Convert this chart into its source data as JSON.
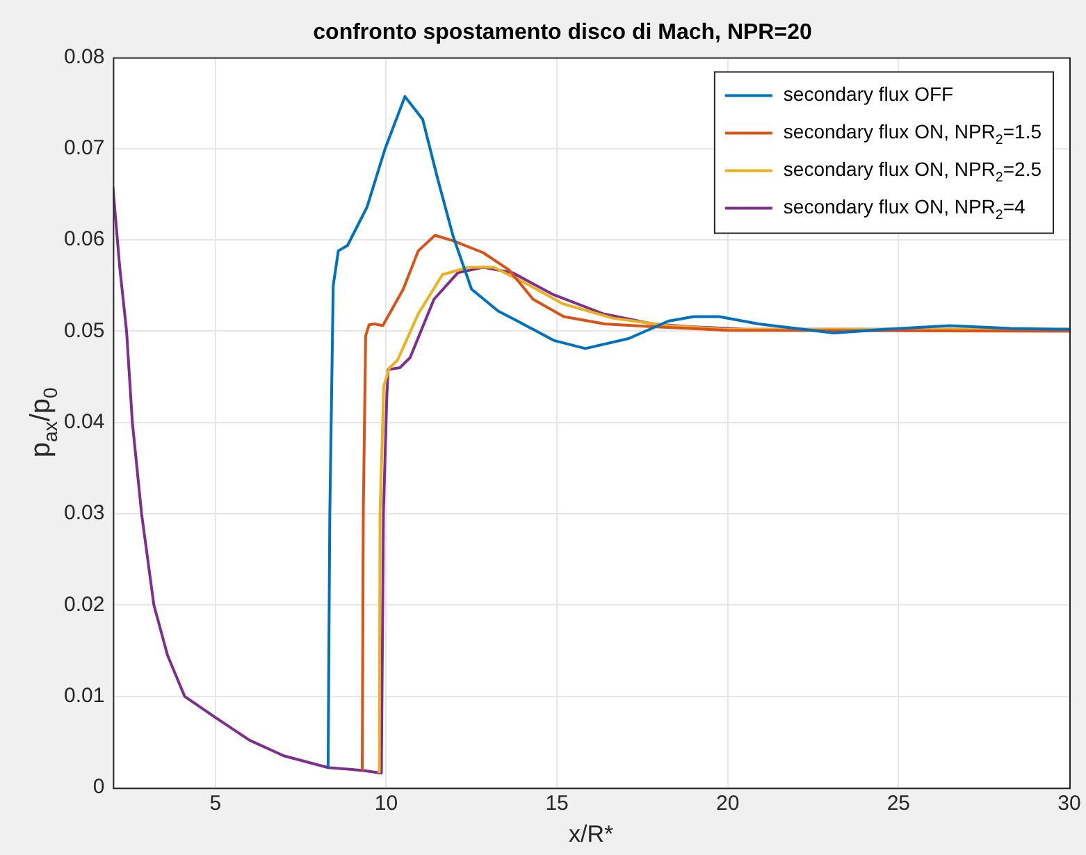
{
  "chart_data": {
    "type": "line",
    "title": "confronto spostamento disco di Mach, NPR=20",
    "xlabel": "x/R*",
    "ylabel": "p$_{ax}$/p$_{0}$",
    "xlim": [
      2,
      30
    ],
    "xticks": [
      5,
      10,
      15,
      20,
      25,
      30
    ],
    "ylim": [
      0,
      0.08
    ],
    "yticks": [
      0,
      0.01,
      0.02,
      0.03,
      0.04,
      0.05,
      0.06,
      0.07,
      0.08
    ],
    "grid": true,
    "legend": "top right",
    "marker": "none",
    "line_style": "solid",
    "series": [
      {
        "name": "secondary flux OFF",
        "color": "#0072bd",
        "x": [
          8.3,
          8.35,
          8.45,
          8.6,
          8.87,
          9.44,
          9.97,
          10.55,
          11.07,
          11.5,
          11.96,
          12.5,
          13.28,
          13.85,
          14.9,
          15.83,
          17.1,
          18.26,
          19,
          19.75,
          20.9,
          23.1,
          24.6,
          26.5,
          28.3,
          30
        ],
        "values": [
          0.0022,
          0.03,
          0.055,
          0.0588,
          0.0594,
          0.0636,
          0.07,
          0.0757,
          0.0732,
          0.0668,
          0.0604,
          0.0546,
          0.0522,
          0.0511,
          0.049,
          0.0481,
          0.0492,
          0.0511,
          0.0516,
          0.0516,
          0.0508,
          0.0498,
          0.0502,
          0.0506,
          0.0503,
          0.0502
        ]
      },
      {
        "name": "secondary flux ON, NPR$_{2}$=1.5",
        "color": "#d95319",
        "x": [
          9.3,
          9.33,
          9.4,
          9.5,
          9.66,
          9.9,
          10.5,
          10.94,
          11.43,
          11.96,
          12.84,
          13.6,
          14.3,
          15.2,
          16.4,
          17.8,
          20,
          30
        ],
        "values": [
          0.0019,
          0.03,
          0.0495,
          0.0507,
          0.0508,
          0.0506,
          0.0546,
          0.0588,
          0.0605,
          0.0599,
          0.0586,
          0.0567,
          0.0535,
          0.0516,
          0.0508,
          0.0505,
          0.0501,
          0.05
        ]
      },
      {
        "name": "secondary flux ON, NPR$_{2}$=2.5",
        "color": "#edb120",
        "x": [
          9.8,
          9.82,
          9.93,
          10.1,
          10.33,
          10.94,
          11.65,
          12.4,
          13.15,
          14.16,
          15.17,
          16.67,
          18.26,
          20,
          30
        ],
        "values": [
          0.0016,
          0.03,
          0.044,
          0.046,
          0.0468,
          0.0519,
          0.0562,
          0.057,
          0.057,
          0.0551,
          0.053,
          0.0514,
          0.0506,
          0.0502,
          0.0502
        ]
      },
      {
        "name": "secondary flux ON, NPR$_{2}$=4",
        "color": "#7e2f8e",
        "x": [
          2,
          2.2,
          2.4,
          2.57,
          2.84,
          3.2,
          3.6,
          4.1,
          5,
          6,
          7,
          8.3,
          9.3,
          9.86,
          9.92,
          10.02,
          10.06,
          10.4,
          10.7,
          11.4,
          12.1,
          12.84,
          13.7,
          14.9,
          16.36,
          17.8,
          18.9,
          20.5,
          30
        ],
        "values": [
          0.0658,
          0.057,
          0.05,
          0.04,
          0.03,
          0.02,
          0.0145,
          0.01,
          0.0077,
          0.0052,
          0.0035,
          0.0022,
          0.0019,
          0.0016,
          0.03,
          0.043,
          0.0458,
          0.046,
          0.0471,
          0.0535,
          0.0564,
          0.057,
          0.0564,
          0.054,
          0.0519,
          0.0508,
          0.0505,
          0.0502,
          0.0502
        ]
      }
    ]
  }
}
